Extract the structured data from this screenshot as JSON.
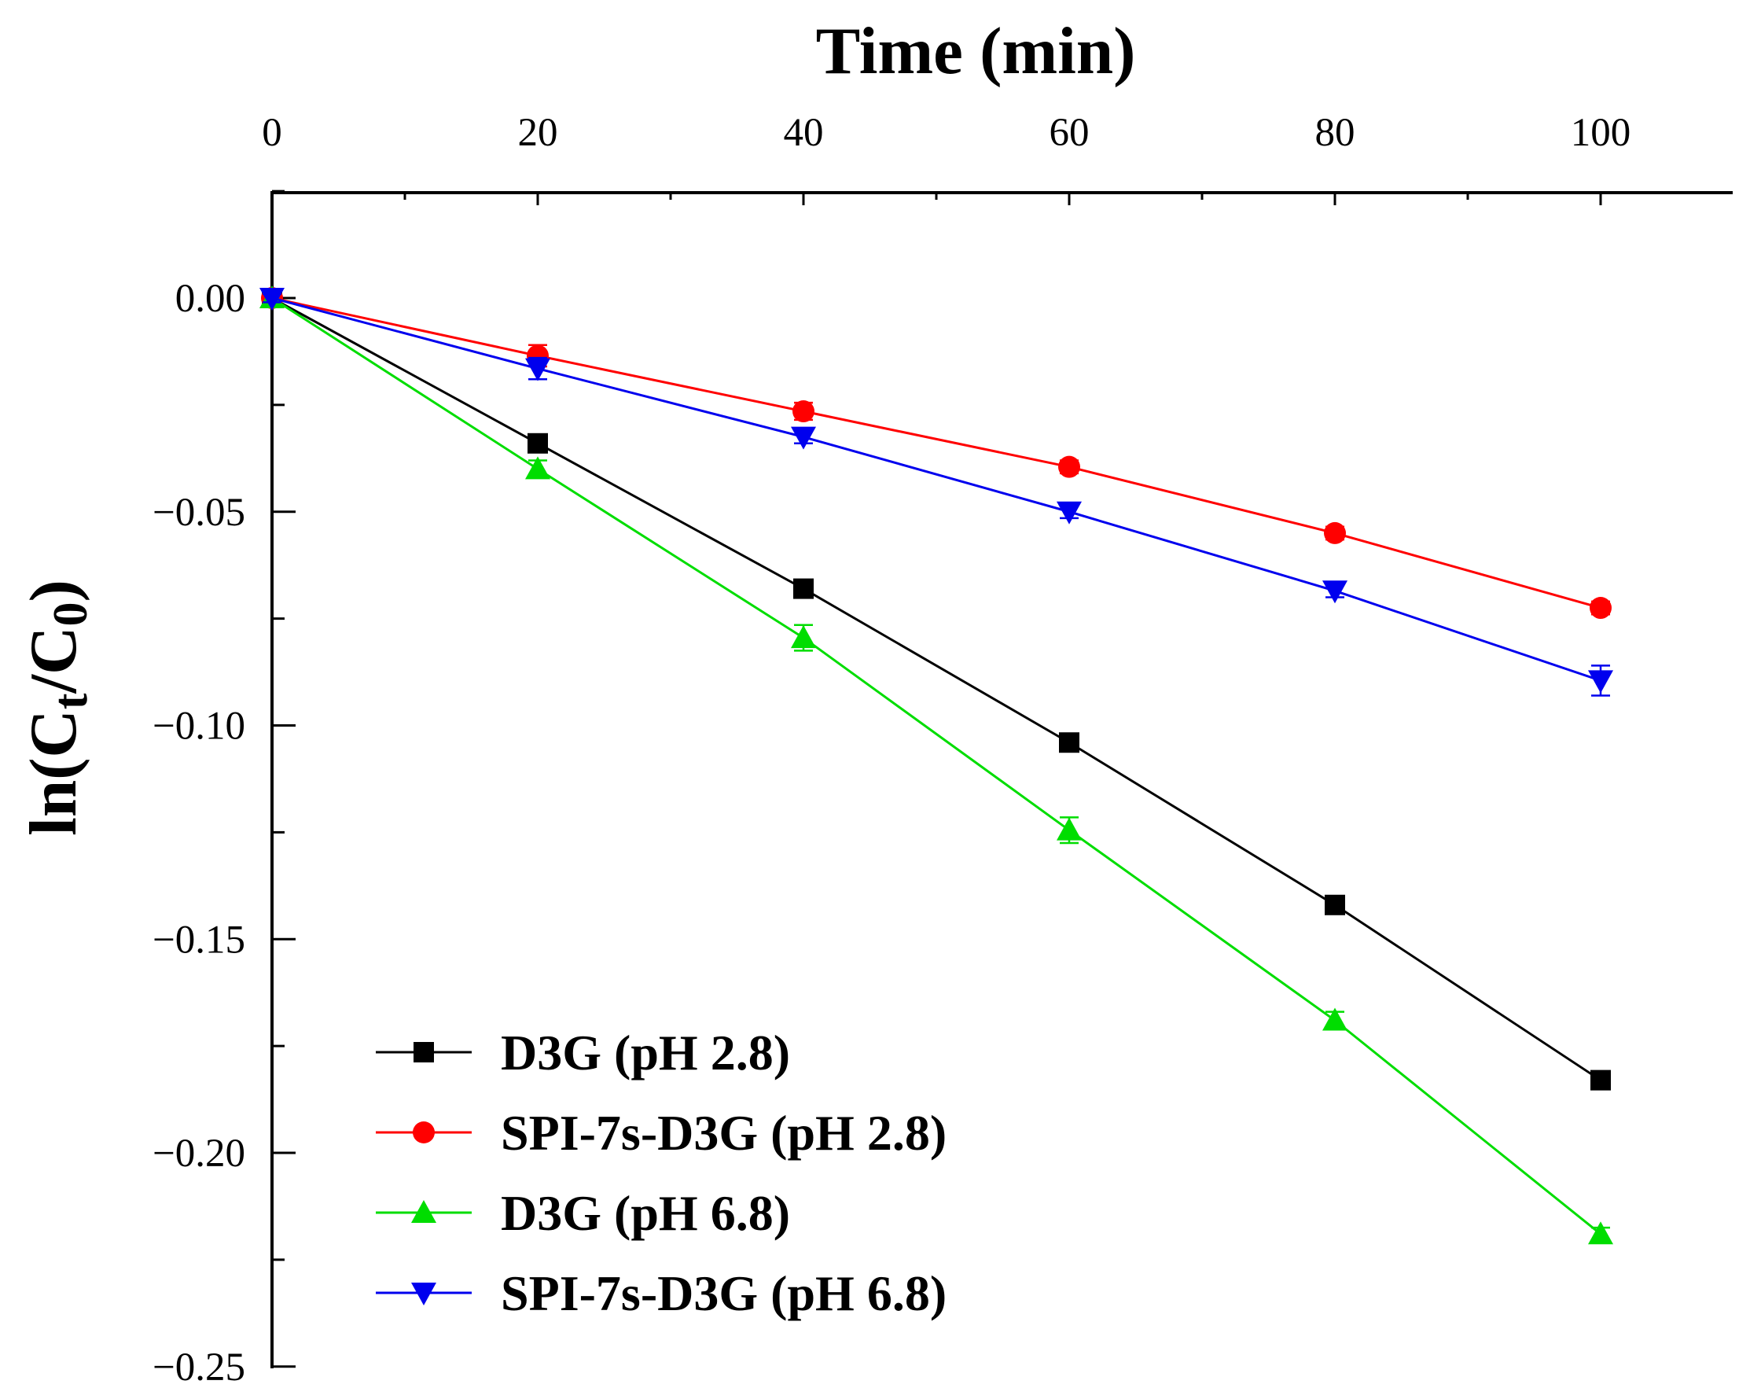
{
  "chart_data": {
    "type": "line",
    "title": "",
    "xlabel": "Time (min)",
    "x_axis_position": "top",
    "ylabel_parts": {
      "prefix": "ln(C",
      "sub1": "t",
      "middle": "/C",
      "sub2": "0",
      "suffix": ")"
    },
    "xlim": [
      0,
      110
    ],
    "ylim": [
      -0.25,
      0.025
    ],
    "x_ticks": [
      0,
      20,
      40,
      60,
      80,
      100
    ],
    "x_tick_labels": [
      "0",
      "20",
      "40",
      "60",
      "80",
      "100"
    ],
    "y_ticks": [
      0.0,
      -0.05,
      -0.1,
      -0.15,
      -0.2,
      -0.25
    ],
    "y_tick_labels": [
      "0.00",
      "−0.05",
      "−0.10",
      "−0.15",
      "−0.20",
      "−0.25"
    ],
    "grid": false,
    "legend_position": "bottom-left",
    "x": [
      0,
      20,
      40,
      60,
      80,
      100
    ],
    "series": [
      {
        "name": "D3G (pH 2.8)",
        "color": "#000000",
        "marker": "square",
        "values": [
          0.0,
          -0.034,
          -0.068,
          -0.104,
          -0.142,
          -0.183
        ],
        "errors": [
          0.001,
          0.0015,
          0.0015,
          0.0015,
          0.0015,
          0.0015
        ]
      },
      {
        "name": "SPI-7s-D3G (pH 2.8)",
        "color": "#ff0000",
        "marker": "circle",
        "values": [
          0.0,
          -0.0135,
          -0.0265,
          -0.0395,
          -0.055,
          -0.0725
        ],
        "errors": [
          0.001,
          0.0025,
          0.002,
          0.0015,
          0.0015,
          0.0015
        ]
      },
      {
        "name": "D3G (pH 6.8)",
        "color": "#00dd00",
        "marker": "triangle-up",
        "values": [
          0.0,
          -0.04,
          -0.0795,
          -0.1245,
          -0.169,
          -0.219
        ],
        "errors": [
          0.001,
          0.002,
          0.003,
          0.003,
          0.002,
          0.0015
        ]
      },
      {
        "name": "SPI-7s-D3G (pH 6.8)",
        "color": "#0000ee",
        "marker": "triangle-down",
        "values": [
          0.0,
          -0.0165,
          -0.0325,
          -0.05,
          -0.0685,
          -0.0895
        ],
        "errors": [
          0.001,
          0.0025,
          0.0015,
          0.0015,
          0.0015,
          0.0035
        ]
      }
    ]
  }
}
